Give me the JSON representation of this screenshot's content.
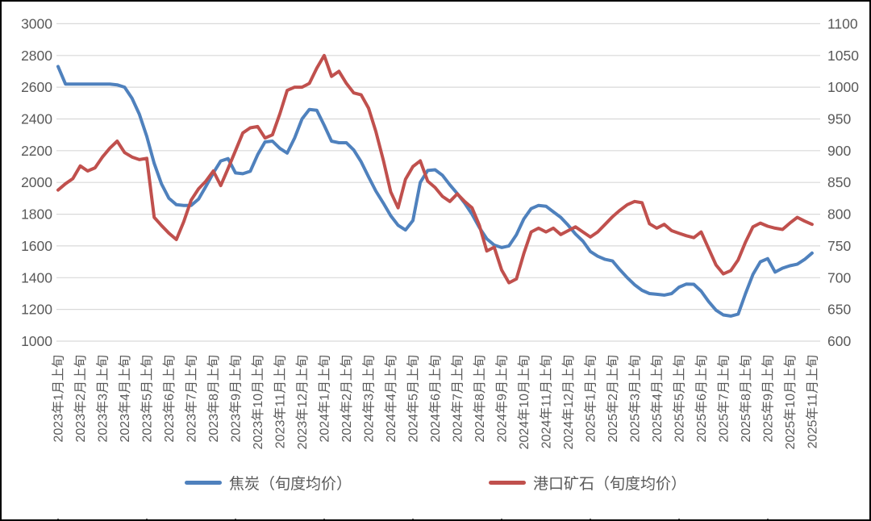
{
  "chart_data": {
    "type": "line",
    "title": "",
    "x_note": "每月3个数据点（上旬/中旬/下旬），横轴仅标注每月上旬",
    "points_per_month": 3,
    "x_tick_labels": [
      "2023年1月上旬",
      "2023年2月上旬",
      "2023年3月上旬",
      "2023年4月上旬",
      "2023年5月上旬",
      "2023年6月上旬",
      "2023年7月上旬",
      "2023年8月上旬",
      "2023年9月上旬",
      "2023年10月上旬",
      "2023年11月上旬",
      "2023年12月上旬",
      "2024年1月上旬",
      "2024年2月上旬",
      "2024年3月上旬",
      "2024年4月上旬",
      "2024年5月上旬",
      "2024年6月上旬",
      "2024年7月上旬",
      "2024年8月上旬",
      "2024年9月上旬",
      "2024年10月上旬",
      "2024年11月上旬",
      "2024年12月上旬",
      "2025年1月上旬",
      "2025年2月上旬",
      "2025年3月上旬",
      "2025年4月上旬",
      "2025年5月上旬",
      "2025年6月上旬",
      "2025年7月上旬",
      "2025年8月上旬",
      "2025年9月上旬",
      "2025年10月上旬",
      "2025年11月上旬"
    ],
    "y_axis_left": {
      "min": 1000,
      "max": 3000,
      "step": 200,
      "ticks": [
        "3000",
        "2800",
        "2600",
        "2400",
        "2200",
        "2000",
        "1800",
        "1600",
        "1400",
        "1200",
        "1000"
      ]
    },
    "y_axis_right": {
      "min": 600,
      "max": 1100,
      "step": 50,
      "ticks": [
        "1100",
        "1050",
        "1000",
        "950",
        "900",
        "850",
        "800",
        "750",
        "700",
        "650",
        "600"
      ]
    },
    "grid": true,
    "legend_position": "bottom",
    "series": [
      {
        "name": "焦炭（旬度均价）",
        "axis": "left",
        "color": "#4F81BD",
        "values": [
          2730,
          2620,
          2620,
          2620,
          2620,
          2620,
          2620,
          2620,
          2615,
          2600,
          2530,
          2430,
          2290,
          2120,
          1990,
          1900,
          1860,
          1855,
          1855,
          1895,
          1975,
          2060,
          2135,
          2150,
          2060,
          2055,
          2070,
          2175,
          2255,
          2260,
          2215,
          2185,
          2280,
          2400,
          2460,
          2455,
          2360,
          2260,
          2250,
          2250,
          2205,
          2130,
          2035,
          1945,
          1870,
          1790,
          1730,
          1700,
          1760,
          2000,
          2075,
          2080,
          2045,
          1985,
          1930,
          1870,
          1800,
          1715,
          1645,
          1605,
          1590,
          1600,
          1670,
          1770,
          1835,
          1855,
          1850,
          1815,
          1780,
          1730,
          1675,
          1630,
          1565,
          1535,
          1515,
          1505,
          1450,
          1400,
          1355,
          1320,
          1300,
          1295,
          1290,
          1300,
          1340,
          1360,
          1358,
          1315,
          1250,
          1195,
          1165,
          1158,
          1170,
          1300,
          1420,
          1500,
          1520,
          1435,
          1460,
          1475,
          1485,
          1515,
          1555
        ]
      },
      {
        "name": "港口矿石（旬度均价）",
        "axis": "right",
        "color": "#C0504D",
        "values": [
          838,
          848,
          856,
          876,
          868,
          873,
          890,
          904,
          915,
          897,
          890,
          886,
          888,
          795,
          782,
          770,
          760,
          788,
          822,
          840,
          852,
          868,
          845,
          872,
          900,
          928,
          936,
          938,
          920,
          925,
          958,
          995,
          1000,
          1000,
          1006,
          1030,
          1050,
          1017,
          1025,
          1006,
          991,
          988,
          967,
          930,
          885,
          835,
          810,
          855,
          875,
          884,
          852,
          842,
          828,
          820,
          832,
          820,
          810,
          782,
          742,
          748,
          712,
          692,
          698,
          738,
          772,
          778,
          772,
          778,
          768,
          774,
          780,
          772,
          764,
          772,
          784,
          796,
          806,
          815,
          820,
          818,
          785,
          778,
          784,
          774,
          770,
          766,
          763,
          772,
          746,
          720,
          706,
          711,
          728,
          756,
          780,
          786,
          781,
          778,
          776,
          786,
          795,
          789,
          784
        ]
      }
    ],
    "style": {
      "gridline_color": "#D9D9D9",
      "axis_text_color": "#595959",
      "legend_text_color": "#595959",
      "border_color": "#000000",
      "background": "#FFFFFF",
      "line_width": 4
    }
  }
}
